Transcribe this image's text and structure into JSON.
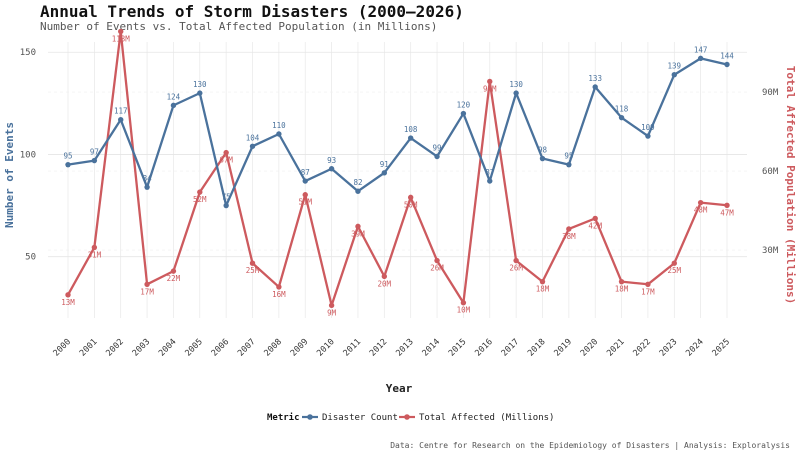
{
  "title": "Annual Trends of Storm Disasters (2000–2026)",
  "subtitle": "Number of Events vs. Total Affected Population (in Millions)",
  "caption": "Data: Centre for Research on the Epidemiology of Disasters | Analysis: Exploralysis",
  "legend": {
    "title": "Metric",
    "items": [
      {
        "label": "Disaster Count",
        "color": "#4a729c"
      },
      {
        "label": "Total Affected (Millions)",
        "color": "#cd5a5e"
      }
    ]
  },
  "chart_data": {
    "type": "line",
    "xlabel": "Year",
    "ylabel": "Number of Events",
    "y2label": "Total Affected Population (Millions)",
    "x": [
      2000,
      2001,
      2002,
      2003,
      2004,
      2005,
      2006,
      2007,
      2008,
      2009,
      2010,
      2011,
      2012,
      2013,
      2014,
      2015,
      2016,
      2017,
      2018,
      2019,
      2020,
      2021,
      2022,
      2023,
      2024,
      2025
    ],
    "ylim": [
      20,
      155
    ],
    "y_ticks": [
      50,
      100,
      150
    ],
    "y2lim": [
      4.2,
      109
    ],
    "y2_ticks": [
      30,
      60,
      90
    ],
    "y2_tick_labels": [
      "30M",
      "60M",
      "90M"
    ],
    "series": [
      {
        "name": "Disaster Count",
        "axis": "left",
        "color": "#4a729c",
        "values": [
          95,
          97,
          117,
          84,
          124,
          130,
          75,
          104,
          110,
          87,
          93,
          82,
          91,
          108,
          99,
          120,
          87,
          130,
          98,
          95,
          133,
          118,
          109,
          139,
          147,
          144
        ],
        "labels": [
          "95",
          "97",
          "117",
          "84",
          "124",
          "130",
          "75",
          "104",
          "110",
          "87",
          "93",
          "82",
          "91",
          "108",
          "99",
          "120",
          "87",
          "130",
          "98",
          "95",
          "133",
          "118",
          "109",
          "139",
          "147",
          "144"
        ]
      },
      {
        "name": "Total Affected (Millions)",
        "axis": "right",
        "color": "#cd5a5e",
        "values": [
          13,
          31,
          113,
          17,
          22,
          52,
          67,
          25,
          16,
          51,
          9,
          39,
          20,
          50,
          26,
          10,
          94,
          26,
          18,
          38,
          42,
          18,
          17,
          25,
          48,
          47
        ],
        "labels": [
          "13M",
          "31M",
          "113M",
          "17M",
          "22M",
          "52M",
          "67M",
          "25M",
          "16M",
          "51M",
          "9M",
          "39M",
          "20M",
          "50M",
          "26M",
          "10M",
          "94M",
          "26M",
          "18M",
          "38M",
          "42M",
          "18M",
          "17M",
          "25M",
          "48M",
          "47M"
        ]
      }
    ],
    "grid": true,
    "legend_position": "bottom"
  }
}
